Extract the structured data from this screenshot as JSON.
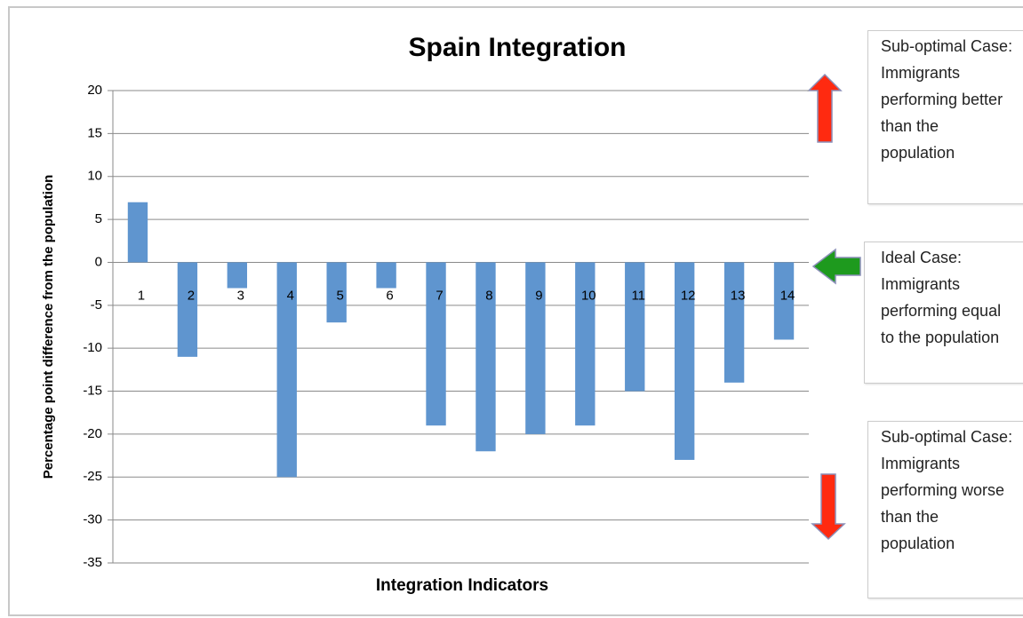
{
  "chart_data": {
    "type": "bar",
    "title": "Spain Integration",
    "x_label": "Integration Indicators",
    "y_label": "Percentage point difference from the population",
    "categories": [
      "1",
      "2",
      "3",
      "4",
      "5",
      "6",
      "7",
      "8",
      "9",
      "10",
      "11",
      "12",
      "13",
      "14"
    ],
    "values": [
      7,
      -11,
      -3,
      -25,
      -7,
      -3,
      -19,
      -22,
      -20,
      -19,
      -15,
      -23,
      -14,
      -9
    ],
    "color": "#5f95cf",
    "ylim": [
      -35,
      20
    ],
    "yticks": [
      -35,
      -30,
      -25,
      -20,
      -15,
      -10,
      -5,
      0,
      5,
      10,
      15,
      20
    ],
    "grid": true,
    "annotations": [
      "Sub-optimal Case: Immigrants performing better than the population",
      "Ideal Case: Immigrants performing equal to the population",
      "Sub-optimal Case: Immigrants performing worse than the population"
    ]
  }
}
